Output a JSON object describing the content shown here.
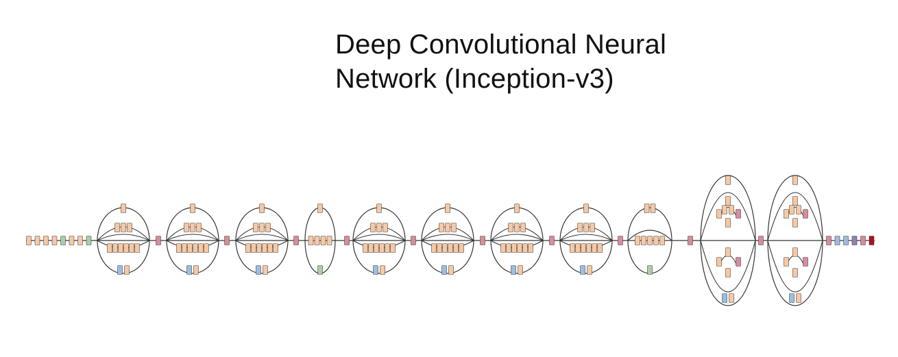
{
  "title": {
    "line1": "Deep Convolutional Neural",
    "line2": "Network (Inception-v3)"
  },
  "colors": {
    "convolution": "#f6c8a4",
    "max_pool": "#d98c9c",
    "avg_pool": "#9dbde0",
    "concat": "#d98c9c",
    "dropout": "#a9cfa6",
    "fully_connected": "#8f7fb8",
    "softmax": "#b0101c",
    "stroke": "#444444",
    "line": "#333333"
  },
  "diagram": {
    "stem_blocks": [
      "convolution",
      "convolution",
      "convolution",
      "convolution",
      "dropout",
      "convolution",
      "convolution",
      "dropout"
    ],
    "modules": [
      "inception-a",
      "inception-a",
      "inception-a",
      "reduction-a",
      "inception-b",
      "inception-b",
      "inception-b",
      "inception-b",
      "reduction-b",
      "inception-c",
      "inception-c"
    ],
    "head_blocks": [
      "max_pool",
      "avg_pool",
      "avg_pool",
      "fully_connected",
      "max_pool",
      "softmax"
    ]
  }
}
